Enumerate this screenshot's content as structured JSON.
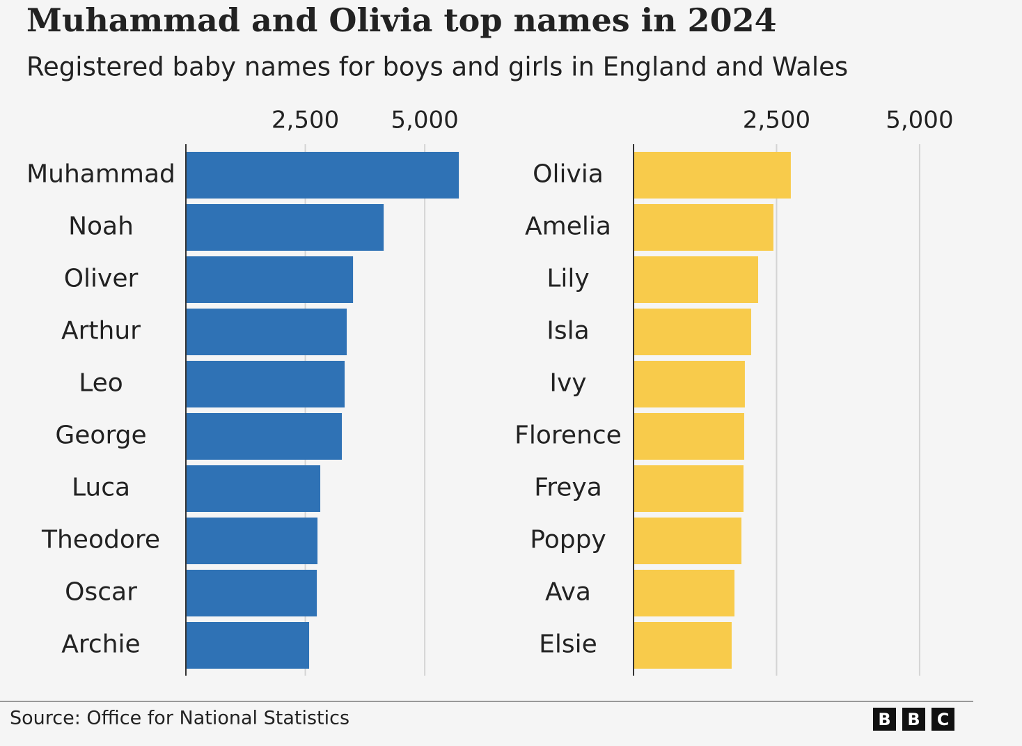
{
  "title": "Muhammad and Olivia top names in 2024",
  "subtitle": "Registered baby names for boys and girls in England and Wales",
  "source": "Source: Office for National Statistics",
  "logo": [
    "B",
    "B",
    "C"
  ],
  "chart_data": [
    {
      "type": "barh",
      "categories": [
        "Muhammad",
        "Noah",
        "Oliver",
        "Arthur",
        "Leo",
        "George",
        "Luca",
        "Theodore",
        "Oscar",
        "Archie"
      ],
      "values": [
        5714,
        4140,
        3499,
        3367,
        3323,
        3265,
        2813,
        2755,
        2741,
        2580
      ],
      "color": "#2f72b5",
      "xlim": [
        0,
        5800
      ],
      "xticks": [
        {
          "value": 2500,
          "label": "2,500"
        },
        {
          "value": 5000,
          "label": "5,000"
        }
      ],
      "grid": true
    },
    {
      "type": "barh",
      "categories": [
        "Olivia",
        "Amelia",
        "Lily",
        "Isla",
        "Ivy",
        "Florence",
        "Freya",
        "Poppy",
        "Ava",
        "Elsie"
      ],
      "values": [
        2749,
        2445,
        2178,
        2056,
        1946,
        1934,
        1922,
        1886,
        1764,
        1715
      ],
      "color": "#f8cb4b",
      "xlim": [
        0,
        5500
      ],
      "xticks": [
        {
          "value": 2500,
          "label": "2,500"
        },
        {
          "value": 5000,
          "label": "5,000"
        }
      ],
      "grid": true
    }
  ]
}
